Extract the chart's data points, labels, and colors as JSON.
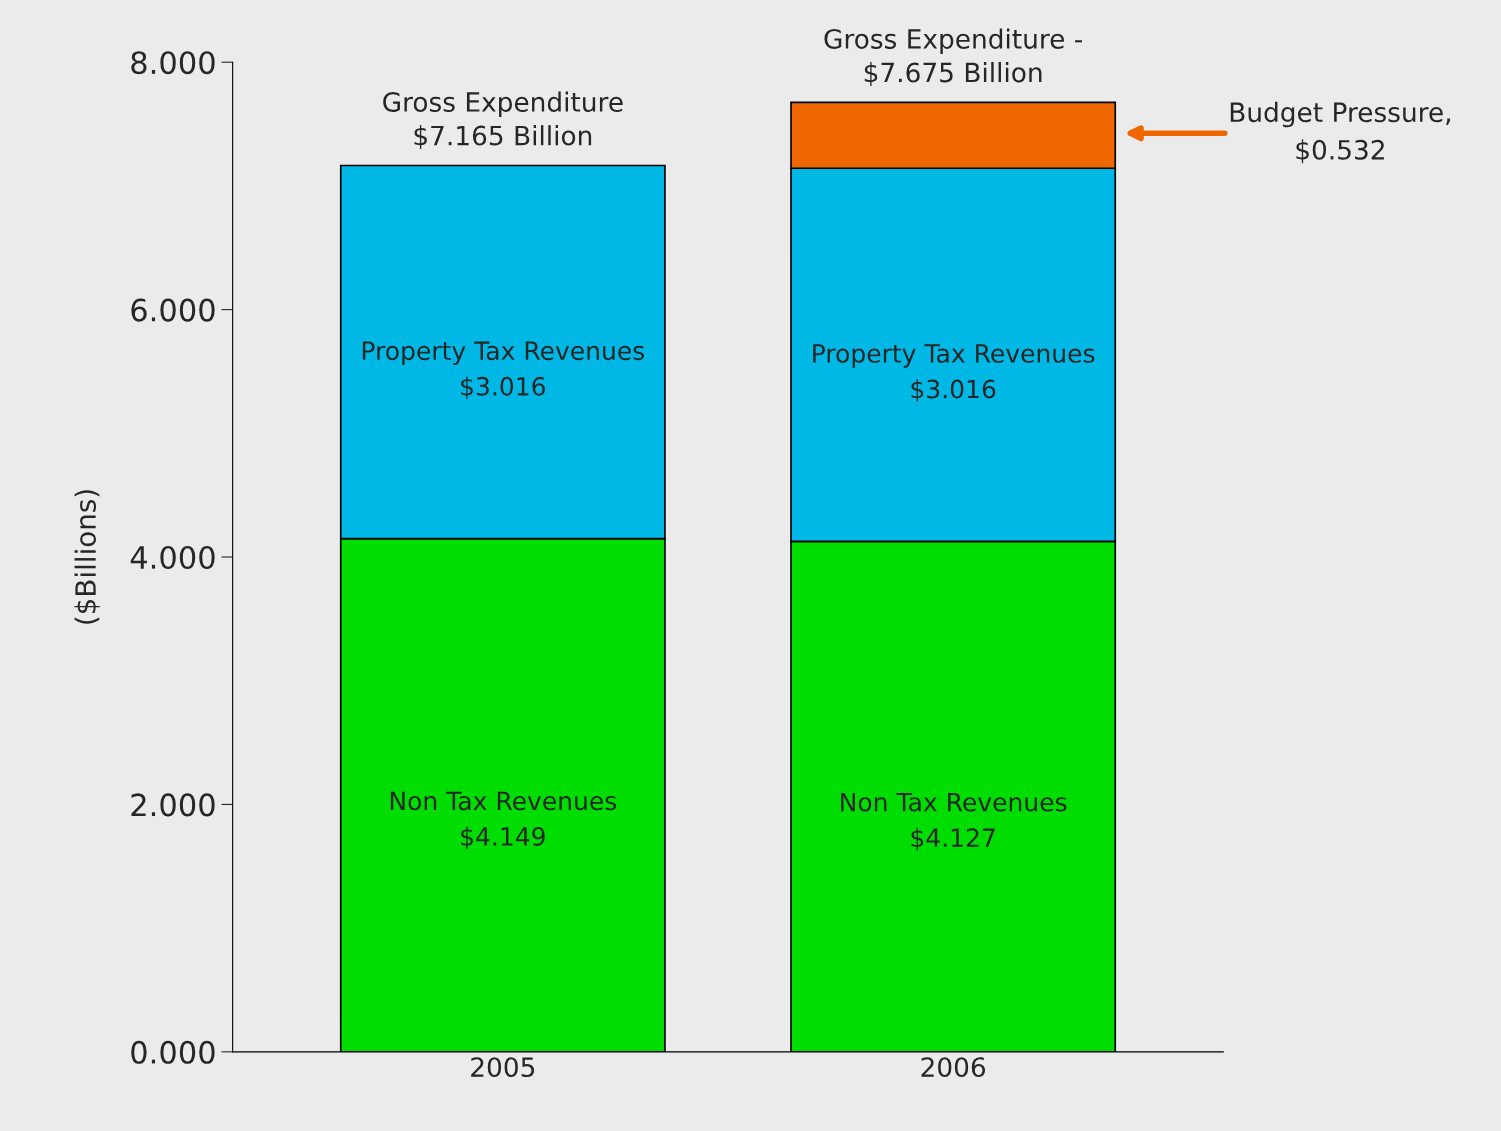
{
  "chart_data": {
    "type": "bar",
    "stacked": true,
    "categories": [
      "2005",
      "2006"
    ],
    "series": [
      {
        "name": "Non Tax Revenues",
        "color": "#00dd00",
        "values": [
          4.149,
          4.127
        ],
        "value_labels": [
          "$4.149",
          "$4.127"
        ]
      },
      {
        "name": "Property Tax Revenues",
        "color": "#00b8e6",
        "values": [
          3.016,
          3.016
        ],
        "value_labels": [
          "$3.016",
          "$3.016"
        ]
      },
      {
        "color": "#ee6600",
        "values": [
          null,
          0.532
        ]
      }
    ],
    "annotations": [
      {
        "text": "Gross Expenditure\n$7.165 Billion",
        "x": "2005",
        "y": 7.165
      },
      {
        "text": "Gross Expenditure -\n$7.675 Billion",
        "x": "2006",
        "y": 7.675
      },
      "Budget Pressure,\n$0.532"
    ],
    "ylabel": "($Billions)",
    "ylim": [
      0,
      8
    ],
    "yticks": [
      {
        "value": 0,
        "label": "0.000"
      },
      {
        "value": 2,
        "label": "2.000"
      },
      {
        "value": 4,
        "label": "4.000"
      },
      {
        "value": 6,
        "label": "6.000"
      },
      {
        "value": 8,
        "label": "8.000"
      }
    ],
    "grid": false,
    "legend": false
  }
}
